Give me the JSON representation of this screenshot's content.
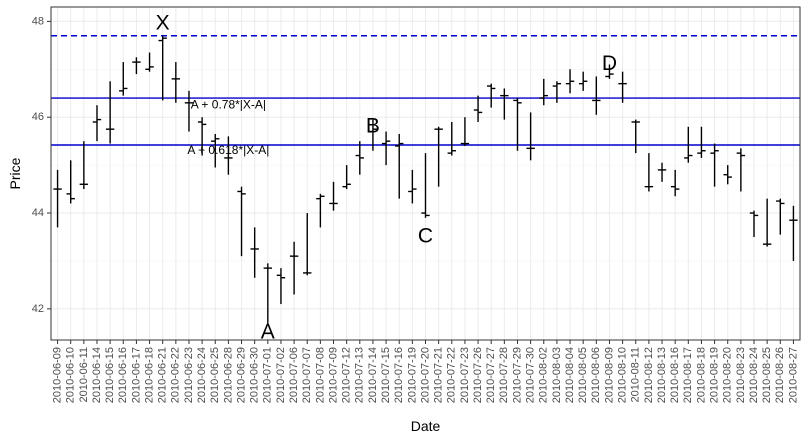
{
  "chart_data": {
    "type": "ohlc",
    "xlabel": "Date",
    "ylabel": "Price",
    "ylim": [
      41.35,
      48.3
    ],
    "yticks": [
      42,
      44,
      46,
      48
    ],
    "grid": true,
    "bars": [
      {
        "date": "2010-06-09",
        "open": 44.5,
        "high": 44.9,
        "low": 43.7,
        "close": 44.5
      },
      {
        "date": "2010-06-10",
        "open": 44.4,
        "high": 45.1,
        "low": 44.2,
        "close": 44.3
      },
      {
        "date": "2010-06-11",
        "open": 44.6,
        "high": 45.5,
        "low": 44.5,
        "close": 44.6
      },
      {
        "date": "2010-06-14",
        "open": 45.9,
        "high": 46.25,
        "low": 45.5,
        "close": 45.95
      },
      {
        "date": "2010-06-15",
        "open": 45.75,
        "high": 46.75,
        "low": 45.45,
        "close": 45.75
      },
      {
        "date": "2010-06-16",
        "open": 46.55,
        "high": 47.15,
        "low": 46.45,
        "close": 46.6
      },
      {
        "date": "2010-06-17",
        "open": 47.15,
        "high": 47.25,
        "low": 46.9,
        "close": 47.15
      },
      {
        "date": "2010-06-18",
        "open": 47.0,
        "high": 47.35,
        "low": 46.95,
        "close": 47.05
      },
      {
        "date": "2010-06-21",
        "open": 47.6,
        "high": 47.7,
        "low": 46.35,
        "close": 47.65
      },
      {
        "date": "2010-06-22",
        "open": 46.8,
        "high": 47.15,
        "low": 46.3,
        "close": 46.8
      },
      {
        "date": "2010-06-23",
        "open": 46.3,
        "high": 46.55,
        "low": 45.7,
        "close": 46.3
      },
      {
        "date": "2010-06-24",
        "open": 45.9,
        "high": 46.0,
        "low": 45.2,
        "close": 45.85
      },
      {
        "date": "2010-06-25",
        "open": 45.5,
        "high": 45.65,
        "low": 44.95,
        "close": 45.55
      },
      {
        "date": "2010-06-28",
        "open": 45.15,
        "high": 45.6,
        "low": 44.8,
        "close": 45.15
      },
      {
        "date": "2010-06-29",
        "open": 44.45,
        "high": 44.55,
        "low": 43.1,
        "close": 44.4
      },
      {
        "date": "2010-06-30",
        "open": 43.25,
        "high": 43.7,
        "low": 42.65,
        "close": 43.25
      },
      {
        "date": "2010-07-01",
        "open": 42.85,
        "high": 42.95,
        "low": 41.65,
        "close": 42.85
      },
      {
        "date": "2010-07-02",
        "open": 42.7,
        "high": 42.85,
        "low": 42.1,
        "close": 42.65
      },
      {
        "date": "2010-07-06",
        "open": 43.1,
        "high": 43.4,
        "low": 42.3,
        "close": 43.1
      },
      {
        "date": "2010-07-07",
        "open": 42.75,
        "high": 44.0,
        "low": 42.7,
        "close": 42.75
      },
      {
        "date": "2010-07-08",
        "open": 44.3,
        "high": 44.4,
        "low": 43.7,
        "close": 44.35
      },
      {
        "date": "2010-07-09",
        "open": 44.2,
        "high": 44.65,
        "low": 44.05,
        "close": 44.2
      },
      {
        "date": "2010-07-12",
        "open": 44.55,
        "high": 45.0,
        "low": 44.5,
        "close": 44.6
      },
      {
        "date": "2010-07-13",
        "open": 45.2,
        "high": 45.5,
        "low": 44.8,
        "close": 45.15
      },
      {
        "date": "2010-07-14",
        "open": 45.7,
        "high": 45.95,
        "low": 45.3,
        "close": 45.75
      },
      {
        "date": "2010-07-15",
        "open": 45.45,
        "high": 45.7,
        "low": 45.0,
        "close": 45.5
      },
      {
        "date": "2010-07-16",
        "open": 45.4,
        "high": 45.65,
        "low": 44.3,
        "close": 45.45
      },
      {
        "date": "2010-07-19",
        "open": 44.45,
        "high": 44.9,
        "low": 44.2,
        "close": 44.5
      },
      {
        "date": "2010-07-20",
        "open": 44.0,
        "high": 45.25,
        "low": 43.9,
        "close": 43.95
      },
      {
        "date": "2010-07-21",
        "open": 45.75,
        "high": 45.8,
        "low": 44.55,
        "close": 45.75
      },
      {
        "date": "2010-07-22",
        "open": 45.25,
        "high": 45.9,
        "low": 45.2,
        "close": 45.3
      },
      {
        "date": "2010-07-23",
        "open": 45.45,
        "high": 46.0,
        "low": 45.4,
        "close": 45.45
      },
      {
        "date": "2010-07-26",
        "open": 46.15,
        "high": 46.45,
        "low": 45.9,
        "close": 46.1
      },
      {
        "date": "2010-07-27",
        "open": 46.65,
        "high": 46.7,
        "low": 46.2,
        "close": 46.6
      },
      {
        "date": "2010-07-28",
        "open": 46.45,
        "high": 46.6,
        "low": 45.95,
        "close": 46.45
      },
      {
        "date": "2010-07-29",
        "open": 46.35,
        "high": 46.4,
        "low": 45.3,
        "close": 46.3
      },
      {
        "date": "2010-07-30",
        "open": 45.35,
        "high": 46.1,
        "low": 45.1,
        "close": 45.35
      },
      {
        "date": "2010-08-02",
        "open": 46.4,
        "high": 46.8,
        "low": 46.25,
        "close": 46.45
      },
      {
        "date": "2010-08-03",
        "open": 46.65,
        "high": 46.75,
        "low": 46.3,
        "close": 46.7
      },
      {
        "date": "2010-08-04",
        "open": 46.7,
        "high": 47.0,
        "low": 46.5,
        "close": 46.75
      },
      {
        "date": "2010-08-05",
        "open": 46.7,
        "high": 46.95,
        "low": 46.55,
        "close": 46.75
      },
      {
        "date": "2010-08-06",
        "open": 46.35,
        "high": 46.85,
        "low": 46.05,
        "close": 46.35
      },
      {
        "date": "2010-08-09",
        "open": 46.85,
        "high": 47.1,
        "low": 46.8,
        "close": 46.9
      },
      {
        "date": "2010-08-10",
        "open": 46.7,
        "high": 46.95,
        "low": 46.3,
        "close": 46.7
      },
      {
        "date": "2010-08-11",
        "open": 45.9,
        "high": 45.95,
        "low": 45.25,
        "close": 45.9
      },
      {
        "date": "2010-08-12",
        "open": 44.55,
        "high": 45.25,
        "low": 44.45,
        "close": 44.55
      },
      {
        "date": "2010-08-13",
        "open": 44.9,
        "high": 45.05,
        "low": 44.65,
        "close": 44.9
      },
      {
        "date": "2010-08-16",
        "open": 44.55,
        "high": 44.9,
        "low": 44.35,
        "close": 44.5
      },
      {
        "date": "2010-08-17",
        "open": 45.15,
        "high": 45.8,
        "low": 45.05,
        "close": 45.2
      },
      {
        "date": "2010-08-18",
        "open": 45.25,
        "high": 45.8,
        "low": 45.15,
        "close": 45.3
      },
      {
        "date": "2010-08-19",
        "open": 45.25,
        "high": 45.45,
        "low": 44.55,
        "close": 45.3
      },
      {
        "date": "2010-08-20",
        "open": 44.8,
        "high": 45.0,
        "low": 44.6,
        "close": 44.75
      },
      {
        "date": "2010-08-23",
        "open": 45.25,
        "high": 45.35,
        "low": 44.45,
        "close": 45.2
      },
      {
        "date": "2010-08-24",
        "open": 44.0,
        "high": 44.05,
        "low": 43.5,
        "close": 43.95
      },
      {
        "date": "2010-08-25",
        "open": 43.35,
        "high": 44.3,
        "low": 43.3,
        "close": 43.35
      },
      {
        "date": "2010-08-26",
        "open": 44.25,
        "high": 44.3,
        "low": 43.55,
        "close": 44.2
      },
      {
        "date": "2010-08-27",
        "open": 43.85,
        "high": 44.15,
        "low": 43.0,
        "close": 43.85
      }
    ],
    "hlines": [
      {
        "y": 47.7,
        "style": "dashed",
        "color": "#0000cc"
      },
      {
        "y": 46.4,
        "style": "solid",
        "color": "#0000cc"
      },
      {
        "y": 45.42,
        "style": "solid",
        "color": "#0000cc"
      }
    ],
    "hline_labels": [
      {
        "text": "A + 0.78*|X-A|",
        "date": "2010-06-28",
        "y": 46.25
      },
      {
        "text": "A + 0.618*|X-A|",
        "date": "2010-06-28",
        "y": 45.3
      }
    ],
    "point_labels": [
      {
        "text": "X",
        "date": "2010-06-21",
        "y": 47.95
      },
      {
        "text": "A",
        "date": "2010-07-01",
        "y": 41.5
      },
      {
        "text": "B",
        "date": "2010-07-14",
        "y": 45.8
      },
      {
        "text": "C",
        "date": "2010-07-20",
        "y": 43.5
      },
      {
        "text": "D",
        "date": "2010-08-09",
        "y": 47.1
      }
    ]
  }
}
